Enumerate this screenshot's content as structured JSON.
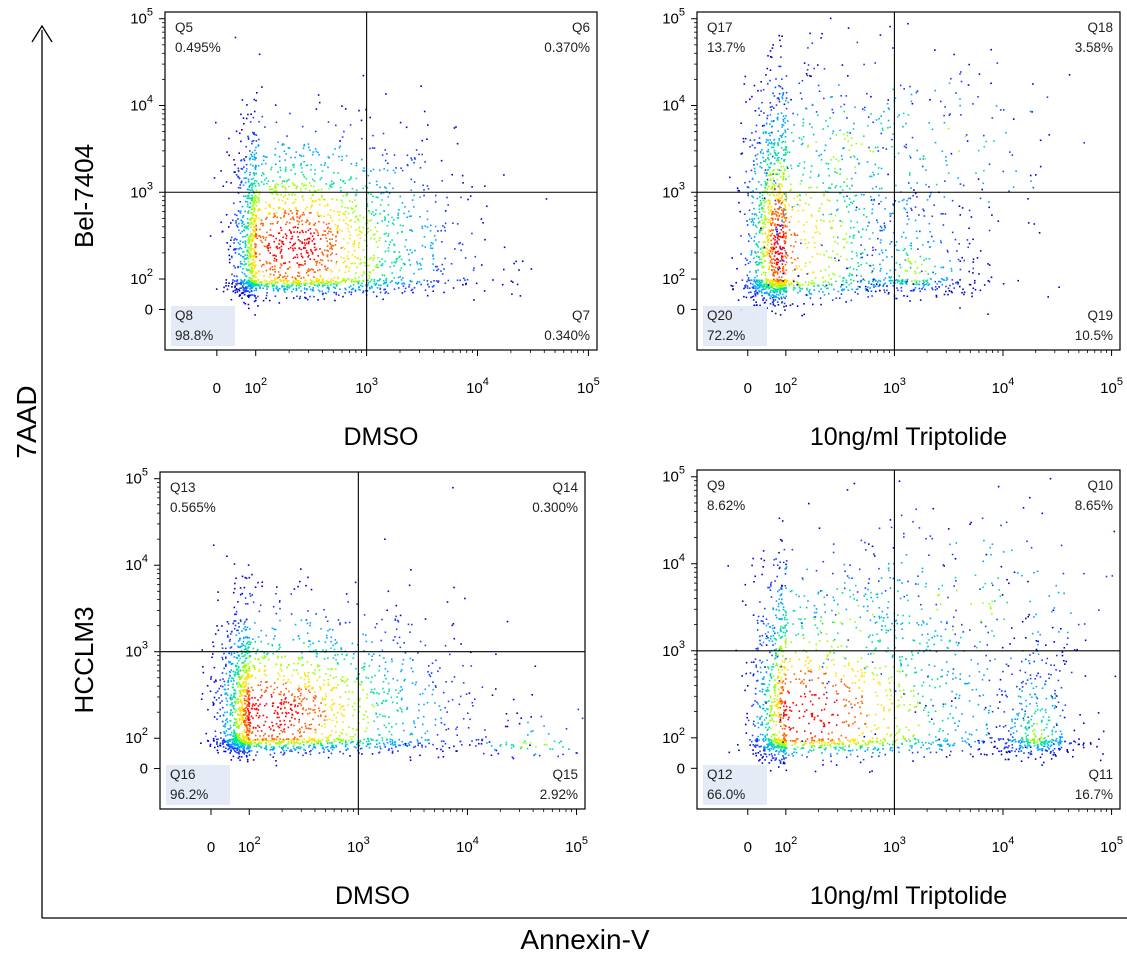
{
  "figure": {
    "y_axis_title": "7AAD",
    "x_axis_title": "Annexin-V",
    "row_labels": [
      "Bel-7404",
      "HCCLM3"
    ]
  },
  "chart_data": [
    {
      "type": "scatter",
      "row": "Bel-7404",
      "condition": "DMSO",
      "xlabel": "DMSO",
      "ylabel": "Bel-7404",
      "x_ticks": [
        "0",
        "10^2",
        "10^3",
        "10^4",
        "10^5"
      ],
      "y_ticks": [
        "0",
        "10^2",
        "10^3",
        "10^4",
        "10^5"
      ],
      "quadrants": [
        {
          "name": "Q5",
          "position": "upper-left",
          "percent": "0.495%",
          "value": 0.495
        },
        {
          "name": "Q6",
          "position": "upper-right",
          "percent": "0.370%",
          "value": 0.37
        },
        {
          "name": "Q7",
          "position": "lower-right",
          "percent": "0.340%",
          "value": 0.34
        },
        {
          "name": "Q8",
          "position": "lower-left",
          "percent": "98.8%",
          "value": 98.8
        }
      ],
      "gate": {
        "x": 1000,
        "y": 1000
      },
      "populations": [
        {
          "x": 220,
          "y": 250,
          "sx": 0.45,
          "sy": 0.42,
          "fraction": 0.985
        }
      ]
    },
    {
      "type": "scatter",
      "row": "Bel-7404",
      "condition": "10ng/ml Triptolide",
      "xlabel": "10ng/ml Triptolide",
      "ylabel": "Bel-7404",
      "x_ticks": [
        "0",
        "10^2",
        "10^3",
        "10^4",
        "10^5"
      ],
      "y_ticks": [
        "0",
        "10^2",
        "10^3",
        "10^4",
        "10^5"
      ],
      "quadrants": [
        {
          "name": "Q17",
          "position": "upper-left",
          "percent": "13.7%",
          "value": 13.7
        },
        {
          "name": "Q18",
          "position": "upper-right",
          "percent": "3.58%",
          "value": 3.58
        },
        {
          "name": "Q19",
          "position": "lower-right",
          "percent": "10.5%",
          "value": 10.5
        },
        {
          "name": "Q20",
          "position": "lower-left",
          "percent": "72.2%",
          "value": 72.2
        }
      ],
      "gate": {
        "x": 1000,
        "y": 1000
      },
      "populations": [
        {
          "x": 40,
          "y": 250,
          "sx": 0.55,
          "sy": 0.55,
          "fraction": 0.72
        },
        {
          "x": 1500,
          "y": 120,
          "sx": 0.18,
          "sy": 0.3,
          "fraction": 0.11
        },
        {
          "x": 300,
          "y": 2500,
          "sx": 0.55,
          "sy": 0.45,
          "fraction": 0.14
        },
        {
          "x": 2500,
          "y": 3500,
          "sx": 0.5,
          "sy": 0.35,
          "fraction": 0.03
        }
      ]
    },
    {
      "type": "scatter",
      "row": "HCCLM3",
      "condition": "DMSO",
      "xlabel": "DMSO",
      "ylabel": "HCCLM3",
      "x_ticks": [
        "0",
        "10^2",
        "10^3",
        "10^4",
        "10^5"
      ],
      "y_ticks": [
        "0",
        "10^2",
        "10^3",
        "10^4",
        "10^5"
      ],
      "quadrants": [
        {
          "name": "Q13",
          "position": "upper-left",
          "percent": "0.565%",
          "value": 0.565
        },
        {
          "name": "Q14",
          "position": "upper-right",
          "percent": "0.300%",
          "value": 0.3
        },
        {
          "name": "Q15",
          "position": "lower-right",
          "percent": "2.92%",
          "value": 2.92
        },
        {
          "name": "Q16",
          "position": "lower-left",
          "percent": "96.2%",
          "value": 96.2
        }
      ],
      "gate": {
        "x": 1000,
        "y": 1000
      },
      "populations": [
        {
          "x": 150,
          "y": 200,
          "sx": 0.55,
          "sy": 0.38,
          "fraction": 0.96
        },
        {
          "x": 40000,
          "y": 40,
          "sx": 0.25,
          "sy": 0.3,
          "fraction": 0.03
        }
      ]
    },
    {
      "type": "scatter",
      "row": "HCCLM3",
      "condition": "10ng/ml Triptolide",
      "xlabel": "10ng/ml Triptolide",
      "ylabel": "HCCLM3",
      "x_ticks": [
        "0",
        "10^2",
        "10^3",
        "10^4",
        "10^5"
      ],
      "y_ticks": [
        "0",
        "10^2",
        "10^3",
        "10^4",
        "10^5"
      ],
      "quadrants": [
        {
          "name": "Q9",
          "position": "upper-left",
          "percent": "8.62%",
          "value": 8.62
        },
        {
          "name": "Q10",
          "position": "upper-right",
          "percent": "8.65%",
          "value": 8.65
        },
        {
          "name": "Q11",
          "position": "lower-right",
          "percent": "16.7%",
          "value": 16.7
        },
        {
          "name": "Q12",
          "position": "lower-left",
          "percent": "66.0%",
          "value": 66.0
        }
      ],
      "gate": {
        "x": 1000,
        "y": 1000
      },
      "populations": [
        {
          "x": 150,
          "y": 200,
          "sx": 0.6,
          "sy": 0.5,
          "fraction": 0.66
        },
        {
          "x": 20000,
          "y": 90,
          "sx": 0.12,
          "sy": 0.35,
          "fraction": 0.17
        },
        {
          "x": 4000,
          "y": 3000,
          "sx": 0.5,
          "sy": 0.4,
          "fraction": 0.09
        },
        {
          "x": 300,
          "y": 2500,
          "sx": 0.5,
          "sy": 0.35,
          "fraction": 0.08
        }
      ]
    }
  ],
  "colors": {
    "density": [
      "#0000c8",
      "#1a3cff",
      "#00a8ff",
      "#00e0a0",
      "#9cff00",
      "#ffe000",
      "#ff6000",
      "#ff0000"
    ],
    "quadrant_box": "#dfe8f5",
    "axis": "#000000"
  }
}
